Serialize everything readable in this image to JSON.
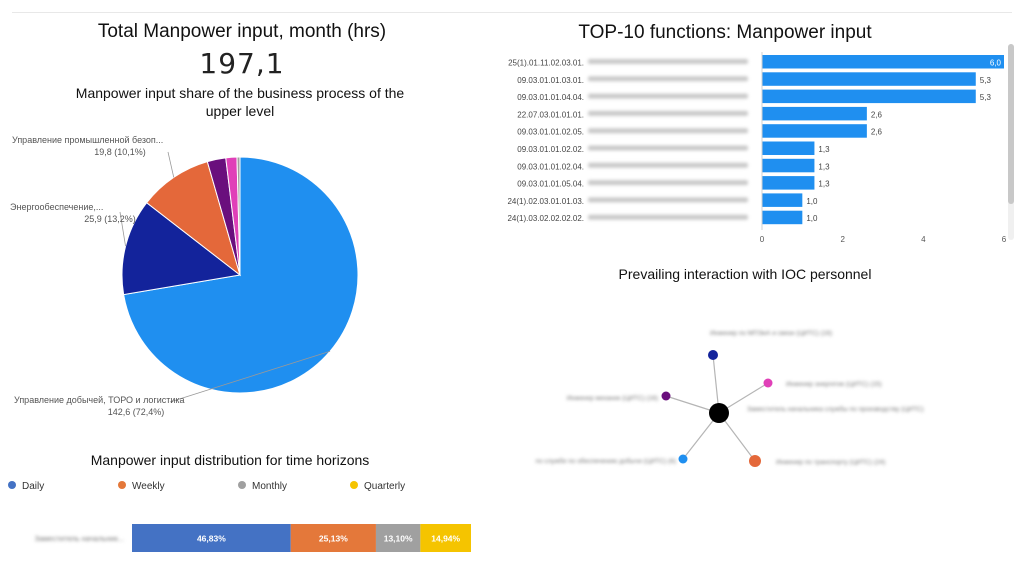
{
  "colors": {
    "blue": "#1f8ff0",
    "navy": "#13239b",
    "orange": "#e4683a",
    "purple": "#6a0f7d",
    "magenta": "#e040b8",
    "gray": "#a0a0a0",
    "yellow": "#f5c400",
    "node_dark": "#000000",
    "edge": "#b5b5b5"
  },
  "total": {
    "title": "Total Manpower input, month (hrs)",
    "value": "197,1"
  },
  "pie": {
    "title": "Manpower input share of the business process of the upper level"
  },
  "top10": {
    "title": "TOP-10 functions: Manpower input"
  },
  "horizons": {
    "title": "Manpower input distribution for time horizons"
  },
  "interaction": {
    "title": "Prevailing interaction with IOC personnel"
  },
  "chart_data": [
    {
      "type": "pie",
      "slices": [
        {
          "label": "Управление добычей, ТОРО и логистика",
          "value": 142.6,
          "value_label": "142,6 (72,4%)",
          "color": "#1f8ff0"
        },
        {
          "label": "Энергообеспечение,...",
          "value": 25.9,
          "value_label": "25,9 (13,2%)",
          "color": "#13239b"
        },
        {
          "label": "Управление промышленной безоп...",
          "value": 19.8,
          "value_label": "19,8 (10,1%)",
          "color": "#e4683a"
        },
        {
          "label": "",
          "value": 5.0,
          "value_label": "",
          "color": "#6a0f7d"
        },
        {
          "label": "",
          "value": 3.0,
          "value_label": "",
          "color": "#e040b8"
        },
        {
          "label": "",
          "value": 0.8,
          "value_label": "",
          "color": "#a0a0a0"
        }
      ]
    },
    {
      "type": "bar",
      "orientation": "horizontal",
      "categories": [
        "25(1).01.11.02.03.01.",
        "09.03.01.01.03.01.",
        "09.03.01.01.04.04.",
        "22.07.03.01.01.01.",
        "09.03.01.01.02.05.",
        "09.03.01.01.02.02.",
        "09.03.01.01.02.04.",
        "09.03.01.01.05.04.",
        "24(1).02.03.01.01.03.",
        "24(1).03.02.02.02.02."
      ],
      "values": [
        6.0,
        5.3,
        5.3,
        2.6,
        2.6,
        1.3,
        1.3,
        1.3,
        1.0,
        1.0
      ],
      "value_labels": [
        "6,0",
        "5,3",
        "5,3",
        "2,6",
        "2,6",
        "1,3",
        "1,3",
        "1,3",
        "1,0",
        "1,0"
      ],
      "xticks": [
        "0",
        "2",
        "4",
        "6"
      ],
      "xlim": [
        0,
        6
      ],
      "color": "#1f8ff0"
    },
    {
      "type": "bar",
      "orientation": "horizontal",
      "stacked": true,
      "legend": [
        {
          "name": "Daily",
          "color": "#4472c4"
        },
        {
          "name": "Weekly",
          "color": "#e4783a"
        },
        {
          "name": "Monthly",
          "color": "#a0a0a0"
        },
        {
          "name": "Quarterly",
          "color": "#f5c400"
        }
      ],
      "legend_position": "top",
      "values": [
        46.83,
        25.13,
        13.1,
        14.94
      ],
      "value_labels": [
        "46,83%",
        "25,13%",
        "13,10%",
        "14,94%"
      ],
      "category": "Заместитель начальник..."
    }
  ],
  "network": {
    "center_color": "#000000",
    "nodes": [
      {
        "label": "Инженер по МПЭиА и связи (ЦИТС) (16)",
        "color": "#13239b"
      },
      {
        "label": "Инженер энергетик (ЦИТС) (15)",
        "color": "#e040b8"
      },
      {
        "label": "Заместитель начальника службы по производству (ЦИТС)",
        "color": "#000000"
      },
      {
        "label": "Инженер по транспорту (ЦИТС) (24)",
        "color": "#e4683a"
      },
      {
        "label": "по службе по обеспечению добычи (ЦИТС) (6)",
        "color": "#1f8ff0"
      },
      {
        "label": "Инженер механик (ЦИТС) (16)",
        "color": "#6a0f7d"
      }
    ]
  }
}
